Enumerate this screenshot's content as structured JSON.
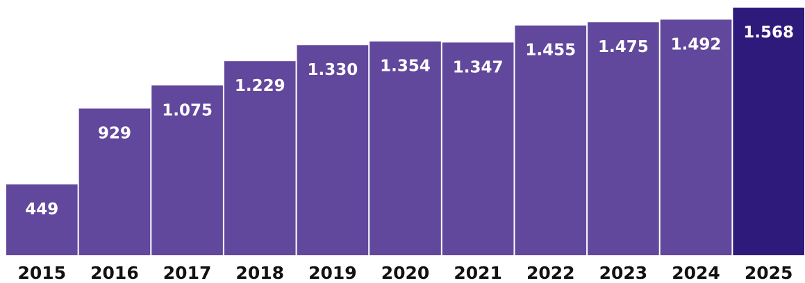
{
  "chart_data": {
    "type": "bar",
    "categories": [
      "2015",
      "2016",
      "2017",
      "2018",
      "2019",
      "2020",
      "2021",
      "2022",
      "2023",
      "2024",
      "2025"
    ],
    "values": [
      449,
      929,
      1075,
      1229,
      1330,
      1354,
      1347,
      1455,
      1475,
      1492,
      1568
    ],
    "data_labels": [
      "449",
      "929",
      "1.075",
      "1.229",
      "1.330",
      "1.354",
      "1.347",
      "1.455",
      "1.475",
      "1.492",
      "1.568"
    ],
    "title": "",
    "xlabel": "",
    "ylabel": "",
    "ylim": [
      0,
      1568
    ],
    "grid": false,
    "legend": "none",
    "colors": {
      "bar": "#62489c",
      "highlight_bar": "#2e1a7a",
      "bar_label": "#ffffff",
      "tick_label": "#111111",
      "background": "#ffffff"
    },
    "highlight_category": "2025"
  }
}
